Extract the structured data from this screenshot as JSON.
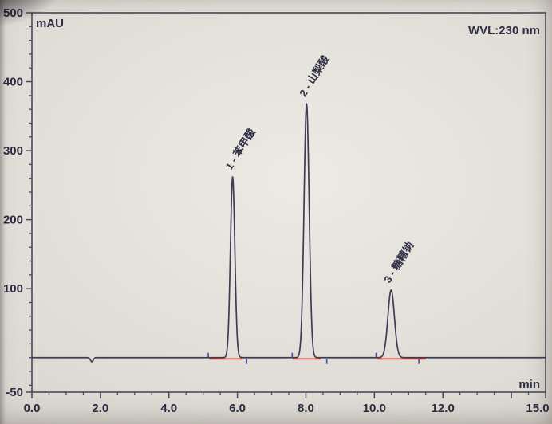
{
  "chart_data": {
    "type": "line",
    "title": "",
    "detector_label": "WVL:230 nm",
    "y_axis_unit": "mAU",
    "x_axis_unit": "min",
    "x_range_min": [
      0,
      15
    ],
    "y_range_mau": [
      -50,
      500
    ],
    "x_minor_tick_step_min": 0.5,
    "y_minor_tick_step_mau": 20,
    "grid": false,
    "legend_position": "none",
    "x_tick_labels": [
      {
        "value": 0,
        "label": "0.0"
      },
      {
        "value": 2,
        "label": "2.0"
      },
      {
        "value": 4,
        "label": "4.0"
      },
      {
        "value": 6,
        "label": "6.0"
      },
      {
        "value": 8,
        "label": "8.0"
      },
      {
        "value": 10,
        "label": "10.0"
      },
      {
        "value": 12,
        "label": "12.0"
      },
      {
        "value": 14,
        "label": ""
      },
      {
        "value": 15,
        "label": "15.0"
      }
    ],
    "y_tick_labels": [
      {
        "value": 500,
        "label": "500"
      },
      {
        "value": 400,
        "label": "400"
      },
      {
        "value": 300,
        "label": "300"
      },
      {
        "value": 200,
        "label": "200"
      },
      {
        "value": 100,
        "label": "100"
      },
      {
        "value": -50,
        "label": "-50"
      }
    ],
    "baseline_mau": 0,
    "baseline_dip": {
      "time_min": 1.75,
      "depth_mau": -6,
      "sigma_min": 0.04
    },
    "peaks": [
      {
        "number": 1,
        "name": "苯甲酸",
        "label": "1 - 苯甲酸",
        "retention_time_min": 5.86,
        "height_mau": 262,
        "sigma_min": 0.065
      },
      {
        "number": 2,
        "name": "山梨酸",
        "label": "2 - 山梨酸",
        "retention_time_min": 8.02,
        "height_mau": 368,
        "sigma_min": 0.075
      },
      {
        "number": 3,
        "name": "糖精钠",
        "label": "3 - 糖精钠",
        "retention_time_min": 10.49,
        "height_mau": 98,
        "sigma_min": 0.095
      }
    ],
    "integration": {
      "red_baseline_segments_min": [
        [
          5.18,
          6.15
        ],
        [
          7.62,
          8.43
        ],
        [
          10.08,
          11.5
        ]
      ],
      "start_tick_times_min": [
        5.15,
        7.6,
        10.05
      ],
      "end_tick_times_min": [
        6.27,
        8.61,
        11.3
      ]
    },
    "colors": {
      "trace": "#3c3c54",
      "axis": "#4a4a5e",
      "text": "#2c2c42",
      "integration_baseline": "#e0544c",
      "marker": "#4a4aa8",
      "background": "#e0ddd7"
    }
  }
}
